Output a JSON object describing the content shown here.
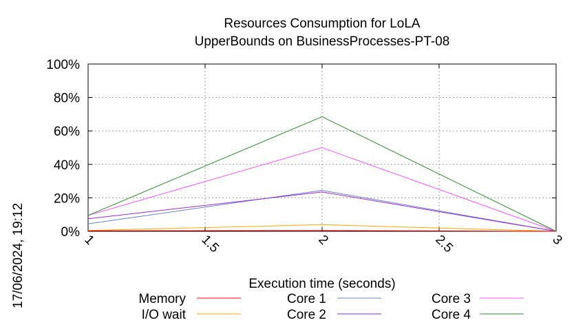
{
  "chart_data": {
    "type": "line",
    "title": "Resources Consumption for LoLA",
    "subtitle": "UpperBounds on BusinessProcesses-PT-08",
    "xlabel": "Execution time (seconds)",
    "ylabel": "",
    "xlim": [
      1,
      3
    ],
    "ylim": [
      0,
      100
    ],
    "x_ticks": [
      "1",
      "1.5",
      "2",
      "2.5",
      "3"
    ],
    "y_ticks": [
      "0%",
      "20%",
      "40%",
      "60%",
      "80%",
      "100%"
    ],
    "grid": true,
    "legend_position": "bottom",
    "timestamp": "17/06/2024, 19:12",
    "series": [
      {
        "name": "Memory",
        "color": "#ff0000",
        "x": [
          1,
          2,
          3
        ],
        "y": [
          0.3,
          0.5,
          0
        ]
      },
      {
        "name": "I/O wait",
        "color": "#ffa500",
        "x": [
          1,
          2,
          3
        ],
        "y": [
          0.5,
          4,
          0
        ]
      },
      {
        "name": "Core 1",
        "color": "#6a7fd6",
        "x": [
          1,
          2,
          3
        ],
        "y": [
          4.5,
          24.5,
          0
        ]
      },
      {
        "name": "Core 2",
        "color": "#9a2ad0",
        "x": [
          1,
          2,
          3
        ],
        "y": [
          7.5,
          23.5,
          0
        ]
      },
      {
        "name": "Core 3",
        "color": "#ff55ff",
        "x": [
          1,
          2,
          3
        ],
        "y": [
          9.5,
          50,
          0
        ]
      },
      {
        "name": "Core 4",
        "color": "#2e8b2e",
        "x": [
          1,
          2,
          3
        ],
        "y": [
          9.5,
          68.5,
          0
        ]
      }
    ]
  }
}
